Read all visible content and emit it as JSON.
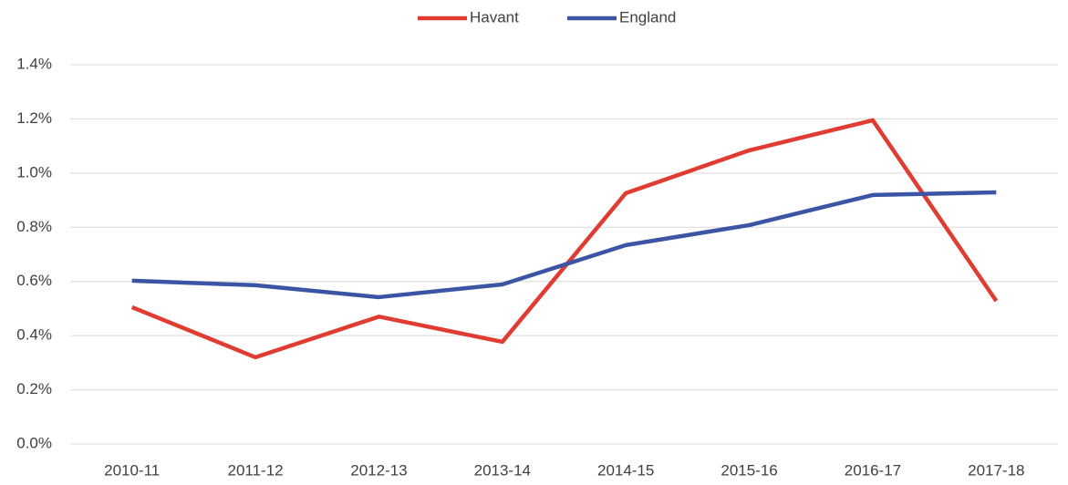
{
  "chart_data": {
    "type": "line",
    "categories": [
      "2010-11",
      "2011-12",
      "2012-13",
      "2013-14",
      "2014-15",
      "2015-16",
      "2016-17",
      "2017-18"
    ],
    "series": [
      {
        "name": "Havant",
        "color": "#e03c31",
        "values": [
          0.505,
          0.32,
          0.47,
          0.377,
          0.926,
          1.084,
          1.195,
          0.528
        ]
      },
      {
        "name": "England",
        "color": "#3c54a4",
        "values": [
          0.603,
          0.586,
          0.542,
          0.589,
          0.734,
          0.808,
          0.919,
          0.929
        ]
      }
    ],
    "ylim": [
      0,
      1.4
    ],
    "yticks": [
      {
        "value": 0,
        "label": "0.0%"
      },
      {
        "value": 0.2,
        "label": "0.2%"
      },
      {
        "value": 0.4,
        "label": "0.4%"
      },
      {
        "value": 0.6,
        "label": "0.6%"
      },
      {
        "value": 0.8,
        "label": "0.8%"
      },
      {
        "value": 1.0,
        "label": "1.0%"
      },
      {
        "value": 1.2,
        "label": "1.2%"
      },
      {
        "value": 1.4,
        "label": "1.4%"
      }
    ],
    "grid": true,
    "legend": "top"
  }
}
